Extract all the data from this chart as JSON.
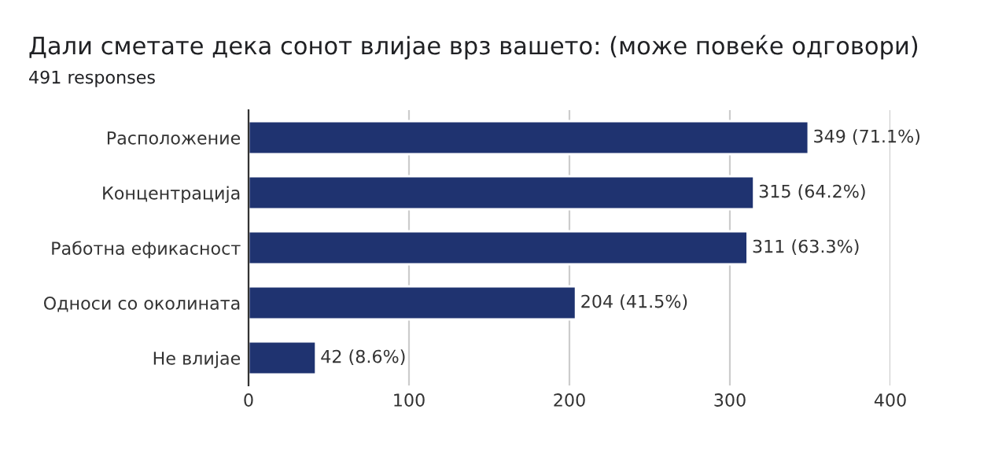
{
  "chart_data": {
    "type": "bar",
    "orientation": "horizontal",
    "title": "Дали сметате дека сонот влијае врз вашето: (може повеќе одговори)",
    "subtitle": "491 responses",
    "categories": [
      "Расположение",
      "Концентрација",
      "Работна ефикасност",
      "Односи со околината",
      "Не влијае"
    ],
    "values": [
      349,
      315,
      311,
      204,
      42
    ],
    "color": "#1f3370",
    "value_labels": [
      "349 (71.1%)",
      "315 (64.2%)",
      "311 (63.3%)",
      "204 (41.5%)",
      "42 (8.6%)"
    ],
    "xlim": [
      0,
      400
    ],
    "xticks": [
      0,
      100,
      200,
      300,
      400
    ],
    "grid": "x",
    "legend": false
  }
}
